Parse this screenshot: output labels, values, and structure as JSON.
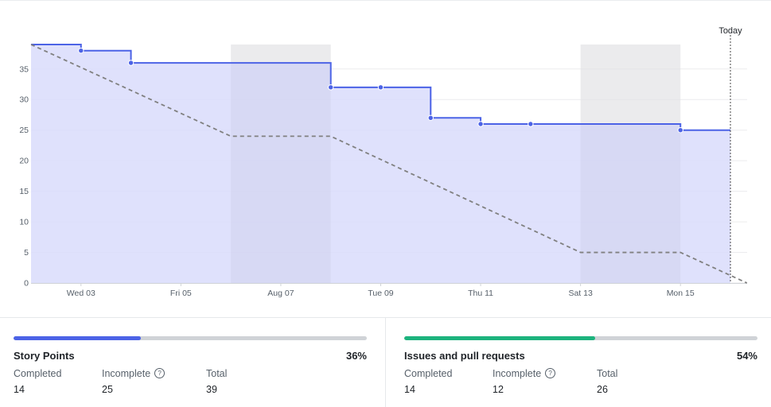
{
  "chart_data": {
    "type": "line",
    "title": "",
    "xlabel": "",
    "ylabel": "",
    "ylim": [
      0,
      39
    ],
    "xlim": [
      "2022-08-02",
      "2022-08-16"
    ],
    "yticks": [
      0,
      5,
      10,
      15,
      20,
      25,
      30,
      35
    ],
    "xticks": [
      {
        "date": "2022-08-03",
        "label": "Wed 03"
      },
      {
        "date": "2022-08-05",
        "label": "Fri 05"
      },
      {
        "date": "2022-08-07",
        "label": "Aug 07"
      },
      {
        "date": "2022-08-09",
        "label": "Tue 09"
      },
      {
        "date": "2022-08-11",
        "label": "Thu 11"
      },
      {
        "date": "2022-08-13",
        "label": "Sat 13"
      },
      {
        "date": "2022-08-15",
        "label": "Mon 15"
      }
    ],
    "grid": true,
    "weekend_bands": [
      [
        "2022-08-06",
        "2022-08-08"
      ],
      [
        "2022-08-13",
        "2022-08-15"
      ]
    ],
    "today": {
      "date": "2022-08-16",
      "label": "Today"
    },
    "series": [
      {
        "type": "step-area",
        "color": "#4c63e6",
        "fill": "#d9dcfb",
        "points": [
          {
            "x": "2022-08-02",
            "y": 39
          },
          {
            "x": "2022-08-03",
            "y": 38
          },
          {
            "x": "2022-08-04",
            "y": 36
          },
          {
            "x": "2022-08-08",
            "y": 32
          },
          {
            "x": "2022-08-09",
            "y": 32
          },
          {
            "x": "2022-08-10",
            "y": 27
          },
          {
            "x": "2022-08-11",
            "y": 26
          },
          {
            "x": "2022-08-12",
            "y": 26
          },
          {
            "x": "2022-08-15",
            "y": 25
          }
        ],
        "end": {
          "x": "2022-08-16",
          "y": 25
        },
        "markers": [
          "2022-08-03",
          "2022-08-04",
          "2022-08-08",
          "2022-08-09",
          "2022-08-10",
          "2022-08-11",
          "2022-08-12",
          "2022-08-15"
        ]
      },
      {
        "type": "dashed-line",
        "color": "#808080",
        "points": [
          {
            "x": "2022-08-02",
            "y": 39
          },
          {
            "x": "2022-08-06",
            "y": 24
          },
          {
            "x": "2022-08-08",
            "y": 24
          },
          {
            "x": "2022-08-13",
            "y": 5
          },
          {
            "x": "2022-08-15",
            "y": 5
          },
          {
            "x": "2022-08-16.33",
            "y": 0
          }
        ]
      }
    ]
  },
  "summary": {
    "story_points": {
      "title": "Story Points",
      "percent": "36%",
      "progress": 0.36,
      "bar_color": "#4c63e6",
      "completed_label": "Completed",
      "completed_value": "14",
      "incomplete_label": "Incomplete",
      "incomplete_value": "25",
      "total_label": "Total",
      "total_value": "39",
      "help_icon": "?"
    },
    "issues": {
      "title": "Issues and pull requests",
      "percent": "54%",
      "progress": 0.54,
      "bar_color": "#1db37d",
      "completed_label": "Completed",
      "completed_value": "14",
      "incomplete_label": "Incomplete",
      "incomplete_value": "12",
      "total_label": "Total",
      "total_value": "26",
      "help_icon": "?"
    }
  }
}
